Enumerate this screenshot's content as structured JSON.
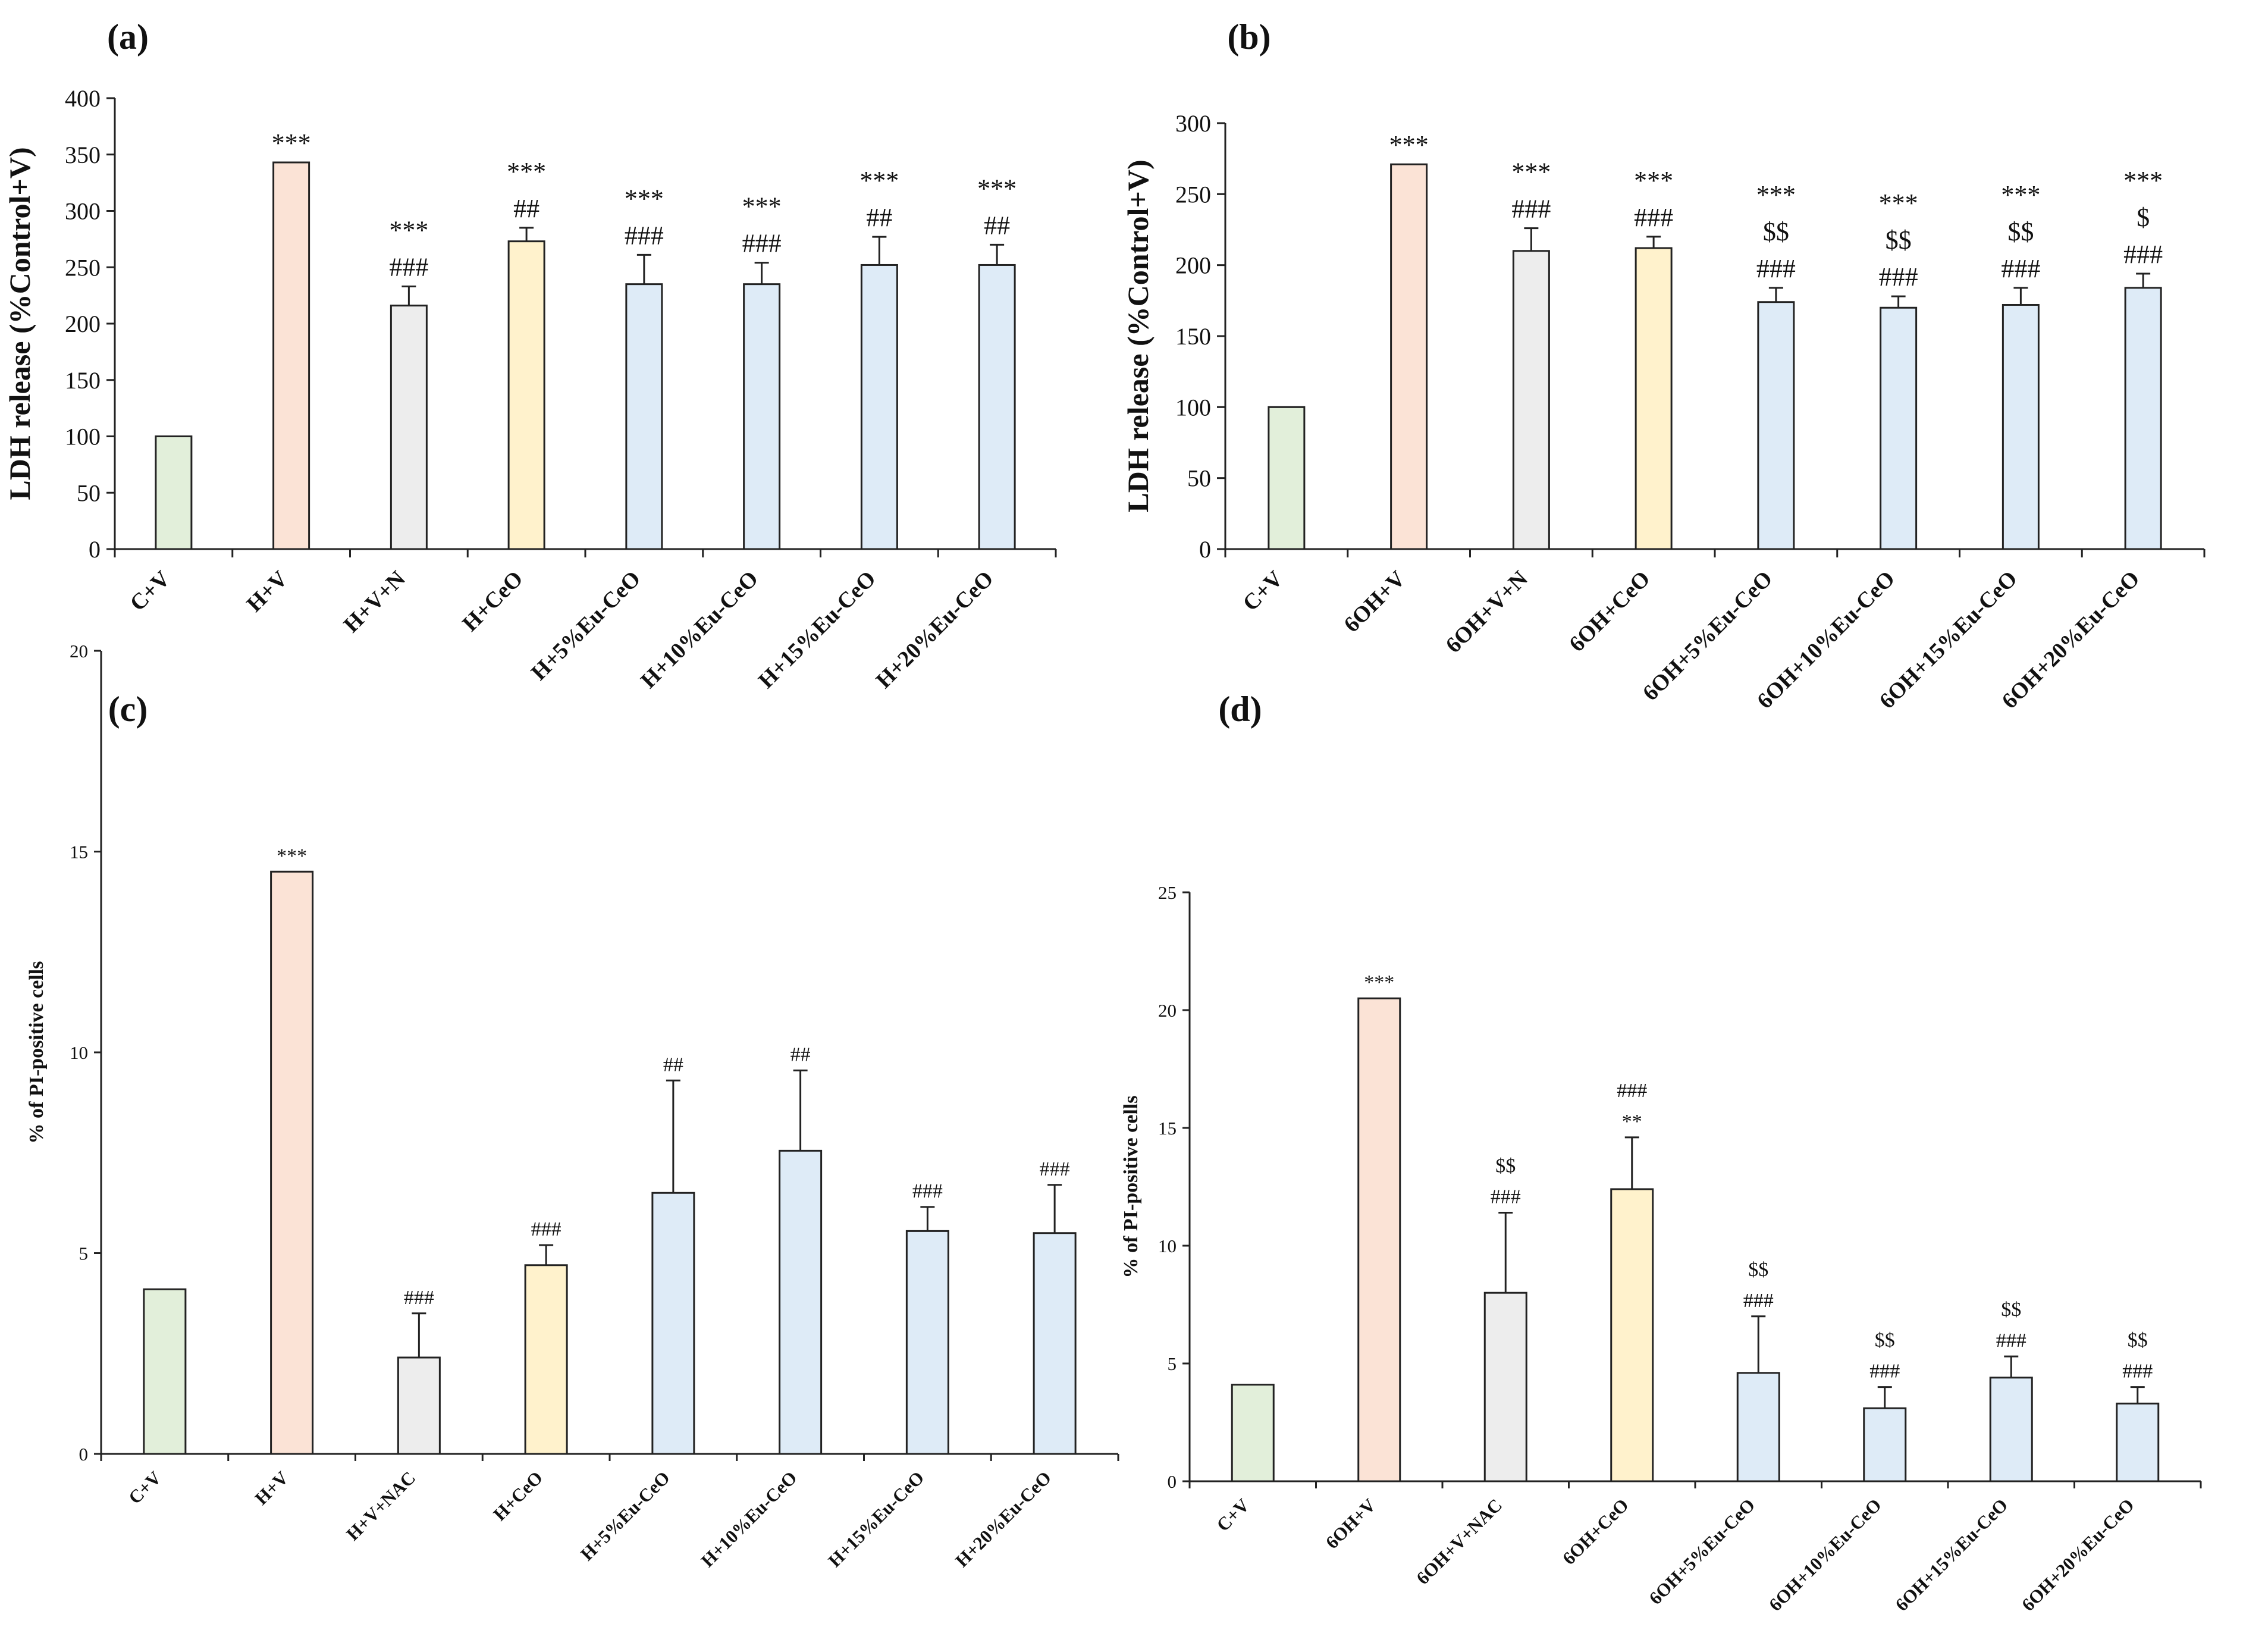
{
  "chart_data": [
    {
      "id": "a",
      "panel_label": "(a)",
      "type": "bar",
      "title": "",
      "ylabel": "LDH release (%Control+V)",
      "xlabel": "",
      "ylim": [
        0,
        400
      ],
      "yticks": [
        0,
        50,
        100,
        150,
        200,
        250,
        300,
        350,
        400
      ],
      "categories": [
        "C+V",
        "H+V",
        "H+V+N",
        "H+CeO",
        "H+5%Eu-CeO",
        "H+10%Eu-CeO",
        "H+15%Eu-CeO",
        "H+20%Eu-CeO"
      ],
      "values": [
        100,
        343,
        216,
        273,
        235,
        235,
        252,
        252
      ],
      "errors": [
        0,
        0,
        17,
        12,
        26,
        19,
        25,
        18
      ],
      "colors": [
        "#E2EFDA",
        "#FBE3D6",
        "#EDEDED",
        "#FFF2CC",
        "#DEEBF7",
        "#DEEBF7",
        "#DEEBF7",
        "#DEEBF7"
      ],
      "annotations": [
        [],
        [
          "***"
        ],
        [
          "***",
          "###"
        ],
        [
          "***",
          "##"
        ],
        [
          "***",
          "###"
        ],
        [
          "***",
          "###"
        ],
        [
          "***",
          "##"
        ],
        [
          "***",
          "##"
        ]
      ]
    },
    {
      "id": "b",
      "panel_label": "(b)",
      "type": "bar",
      "title": "",
      "ylabel": "LDH release (%Control+V)",
      "xlabel": "",
      "ylim": [
        0,
        300
      ],
      "yticks": [
        0,
        50,
        100,
        150,
        200,
        250,
        300
      ],
      "categories": [
        "C+V",
        "6OH+V",
        "6OH+V+N",
        "6OH+CeO",
        "6OH+5%Eu-CeO",
        "6OH+10%Eu-CeO",
        "6OH+15%Eu-CeO",
        "6OH+20%Eu-CeO"
      ],
      "values": [
        100,
        271,
        210,
        212,
        174,
        170,
        172,
        184
      ],
      "errors": [
        0,
        0,
        16,
        8,
        10,
        8,
        12,
        10
      ],
      "colors": [
        "#E2EFDA",
        "#FBE3D6",
        "#EDEDED",
        "#FFF2CC",
        "#DEEBF7",
        "#DEEBF7",
        "#DEEBF7",
        "#DEEBF7"
      ],
      "annotations": [
        [],
        [
          "***"
        ],
        [
          "***",
          "###"
        ],
        [
          "***",
          "###"
        ],
        [
          "***",
          "$$",
          "###"
        ],
        [
          "***",
          "$$",
          "###"
        ],
        [
          "***",
          "$$",
          "###"
        ],
        [
          "***",
          "$",
          "###"
        ]
      ]
    },
    {
      "id": "c",
      "panel_label": "(c)",
      "type": "bar",
      "title": "",
      "ylabel": "% of PI-positive cells",
      "xlabel": "",
      "ylim": [
        0,
        20
      ],
      "yticks": [
        0,
        5,
        10,
        15,
        20
      ],
      "categories": [
        "C+V",
        "H+V",
        "H+V+NAC",
        "H+CeO",
        "H+5%Eu-CeO",
        "H+10%Eu-CeO",
        "H+15%Eu-CeO",
        "H+20%Eu-CeO"
      ],
      "values": [
        4.1,
        14.5,
        2.4,
        4.7,
        6.5,
        7.55,
        5.55,
        5.5
      ],
      "errors": [
        0,
        0,
        1.1,
        0.5,
        2.8,
        2.0,
        0.6,
        1.2
      ],
      "colors": [
        "#E2EFDA",
        "#FBE3D6",
        "#EDEDED",
        "#FFF2CC",
        "#DEEBF7",
        "#DEEBF7",
        "#DEEBF7",
        "#DEEBF7"
      ],
      "annotations": [
        [],
        [
          "***"
        ],
        [
          "###"
        ],
        [
          "###"
        ],
        [
          "##"
        ],
        [
          "##"
        ],
        [
          "###"
        ],
        [
          "###"
        ]
      ]
    },
    {
      "id": "d",
      "panel_label": "(d)",
      "type": "bar",
      "title": "",
      "ylabel": "% of PI-positive cells",
      "xlabel": "",
      "ylim": [
        0,
        25
      ],
      "yticks": [
        0,
        5,
        10,
        15,
        20,
        25
      ],
      "categories": [
        "C+V",
        "6OH+V",
        "6OH+V+NAC",
        "6OH+CeO",
        "6OH+5%Eu-CeO",
        "6OH+10%Eu-CeO",
        "6OH+15%Eu-CeO",
        "6OH+20%Eu-CeO"
      ],
      "values": [
        4.1,
        20.5,
        8.0,
        12.4,
        4.6,
        3.1,
        4.4,
        3.3
      ],
      "errors": [
        0,
        0,
        3.4,
        2.2,
        2.4,
        0.9,
        0.9,
        0.7
      ],
      "colors": [
        "#E2EFDA",
        "#FBE3D6",
        "#EDEDED",
        "#FFF2CC",
        "#DEEBF7",
        "#DEEBF7",
        "#DEEBF7",
        "#DEEBF7"
      ],
      "annotations": [
        [],
        [
          "***"
        ],
        [
          "$$",
          "###"
        ],
        [
          "###",
          "**"
        ],
        [
          "$$",
          "###"
        ],
        [
          "$$",
          "###"
        ],
        [
          "$$",
          "###"
        ],
        [
          "$$",
          "###"
        ]
      ]
    }
  ]
}
